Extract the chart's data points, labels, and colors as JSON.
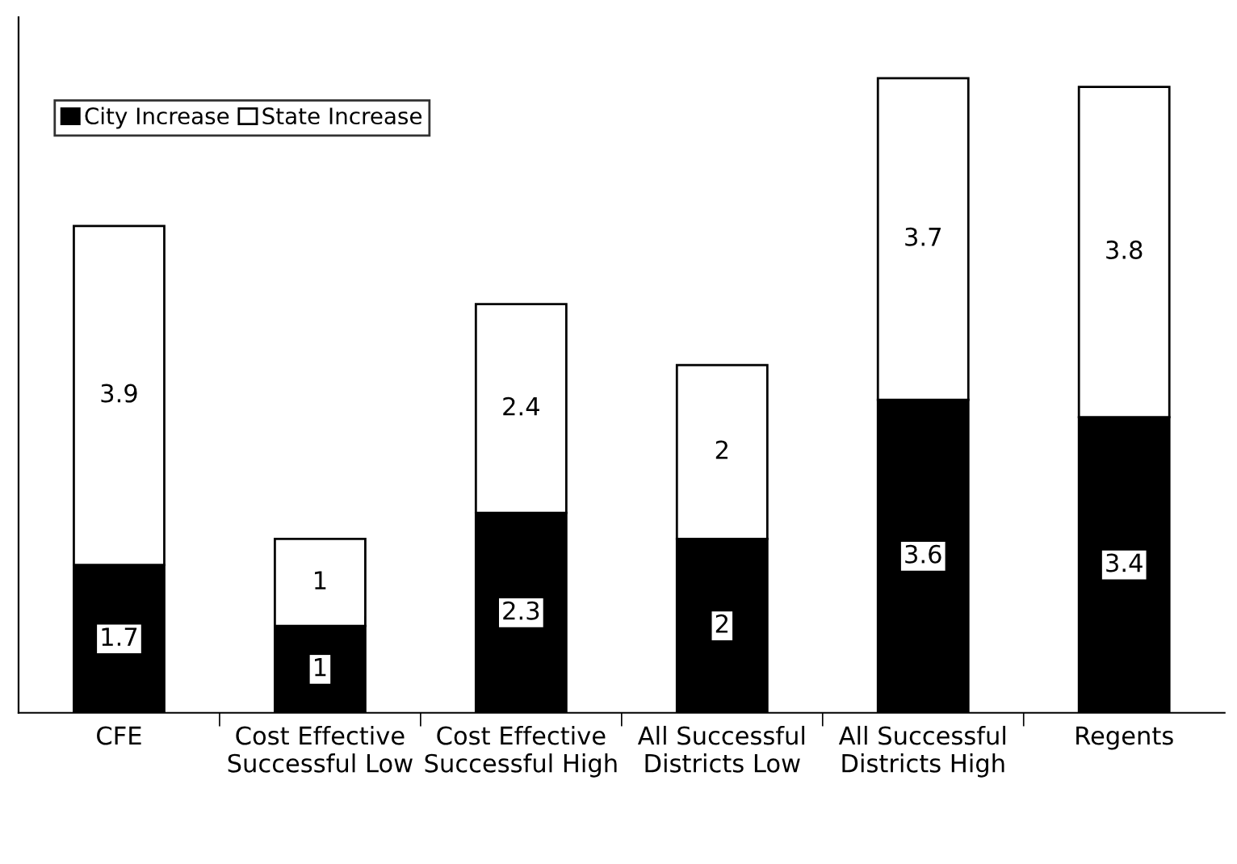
{
  "chart_data": {
    "type": "bar",
    "stacked": true,
    "data_labels": true,
    "legend": "top left",
    "grid": false,
    "tick_labels": "x",
    "ylim": [
      0,
      8
    ],
    "categories": [
      "CFE",
      "Cost Effective Successful Low",
      "Cost Effective Successful High",
      "All Successful Districts Low",
      "All Successful Districts High",
      "Regents"
    ],
    "series": [
      {
        "name": "City Increase",
        "color": "#000000",
        "values": [
          1.7,
          1,
          2.3,
          2,
          3.6,
          3.4
        ]
      },
      {
        "name": "State Increase",
        "color": "#ffffff",
        "values": [
          3.9,
          1,
          2.4,
          2,
          3.7,
          3.8
        ]
      }
    ]
  }
}
